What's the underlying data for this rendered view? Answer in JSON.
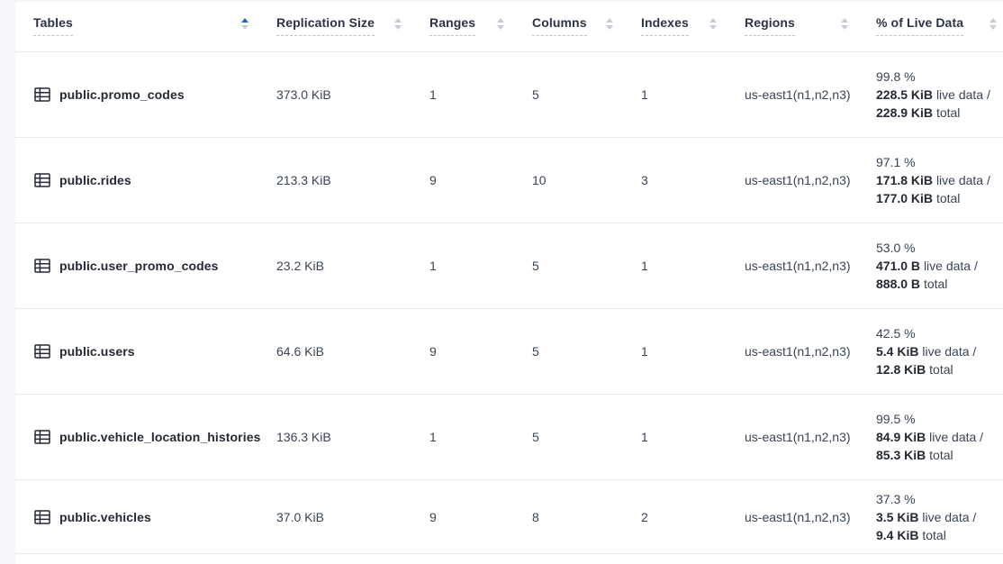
{
  "table": {
    "sort": {
      "column": "Tables",
      "direction": "ascending"
    },
    "columns": [
      {
        "label": "Tables"
      },
      {
        "label": "Replication Size"
      },
      {
        "label": "Ranges"
      },
      {
        "label": "Columns"
      },
      {
        "label": "Indexes"
      },
      {
        "label": "Regions"
      },
      {
        "label": "% of Live Data"
      }
    ],
    "rows": [
      {
        "name": "public.promo_codes",
        "replication_size": "373.0 KiB",
        "ranges": "1",
        "columns": "5",
        "indexes": "1",
        "regions": "us-east1(n1,n2,n3)",
        "live_percent": "99.8 %",
        "live_size": "228.5 KiB",
        "live_suffix": "live data /",
        "total_size": "228.9 KiB",
        "total_suffix": "total"
      },
      {
        "name": "public.rides",
        "replication_size": "213.3 KiB",
        "ranges": "9",
        "columns": "10",
        "indexes": "3",
        "regions": "us-east1(n1,n2,n3)",
        "live_percent": "97.1 %",
        "live_size": "171.8 KiB",
        "live_suffix": "live data /",
        "total_size": "177.0 KiB",
        "total_suffix": "total"
      },
      {
        "name": "public.user_promo_codes",
        "replication_size": "23.2 KiB",
        "ranges": "1",
        "columns": "5",
        "indexes": "1",
        "regions": "us-east1(n1,n2,n3)",
        "live_percent": "53.0 %",
        "live_size": "471.0 B",
        "live_suffix": "live data /",
        "total_size": "888.0 B",
        "total_suffix": "total"
      },
      {
        "name": "public.users",
        "replication_size": "64.6 KiB",
        "ranges": "9",
        "columns": "5",
        "indexes": "1",
        "regions": "us-east1(n1,n2,n3)",
        "live_percent": "42.5 %",
        "live_size": "5.4 KiB",
        "live_suffix": "live data /",
        "total_size": "12.8 KiB",
        "total_suffix": "total"
      },
      {
        "name": "public.vehicle_location_histories",
        "replication_size": "136.3 KiB",
        "ranges": "1",
        "columns": "5",
        "indexes": "1",
        "regions": "us-east1(n1,n2,n3)",
        "live_percent": "99.5 %",
        "live_size": "84.9 KiB",
        "live_suffix": "live data /",
        "total_size": "85.3 KiB",
        "total_suffix": "total"
      },
      {
        "name": "public.vehicles",
        "replication_size": "37.0 KiB",
        "ranges": "9",
        "columns": "8",
        "indexes": "2",
        "regions": "us-east1(n1,n2,n3)",
        "live_percent": "37.3 %",
        "live_size": "3.5 KiB",
        "live_suffix": "live data /",
        "total_size": "9.4 KiB",
        "total_suffix": "total"
      }
    ]
  }
}
